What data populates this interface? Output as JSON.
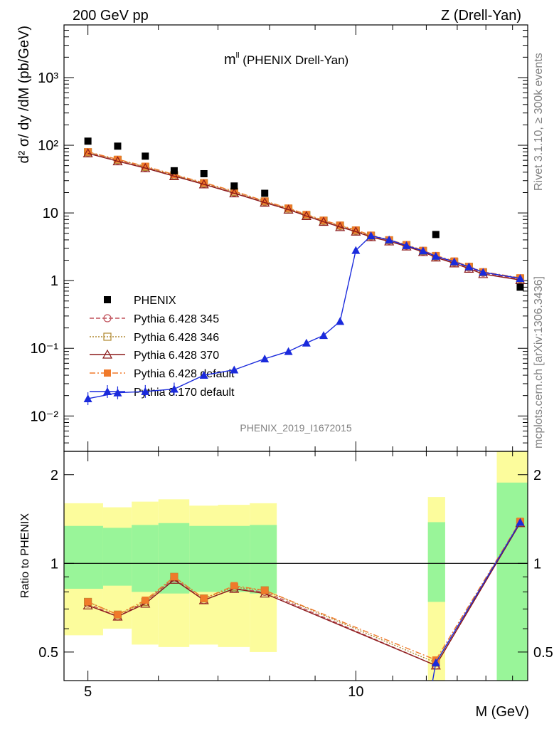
{
  "header": {
    "left": "200 GeV pp",
    "right": "Z (Drell-Yan)",
    "title_main": "m",
    "title_sup": "ll",
    "title_rest": " (PHENIX Drell-Yan)",
    "side_top": "Rivet 3.1.10, ≥ 300k events",
    "side_bottom": "mcplots.cern.ch [arXiv:1306.3436]",
    "analysis_id": "PHENIX_2019_I1672015"
  },
  "colors": {
    "phenix": "#000000",
    "p345": "#c0505a",
    "p346": "#b08830",
    "p370": "#8b1a1a",
    "pdef6": "#f07a2a",
    "p8": "#1a2adc",
    "band_green": "#99f599",
    "band_yellow": "#fcfc9c"
  },
  "chart_data": [
    {
      "type": "scatter",
      "ylabel": "d² σ/ dy /dM (pb/GeV)",
      "y_scale": "log",
      "ylim": [
        0.003,
        6000
      ],
      "xlim": [
        4.7,
        15.6
      ],
      "y_tick_labels": [
        "10⁻²",
        "10⁻¹",
        "1",
        "10",
        "10²",
        "10³"
      ],
      "y_tick_values": [
        0.01,
        0.1,
        1,
        10,
        100,
        1000
      ],
      "legend_position": "bottom-left",
      "series": [
        {
          "name": "PHENIX",
          "key": "phenix",
          "marker": "square",
          "x": [
            5.0,
            5.4,
            5.8,
            6.25,
            6.75,
            7.3,
            7.9,
            12.3,
            15.3
          ],
          "y": [
            115,
            97,
            69,
            42,
            38,
            25,
            19.5,
            4.8,
            0.8
          ]
        },
        {
          "name": "Pythia 6.428 345",
          "key": "p345",
          "marker": "circle",
          "dash": "6,3",
          "x": [
            5.0,
            5.4,
            5.8,
            6.25,
            6.75,
            7.3,
            7.9,
            8.4,
            8.8,
            9.2,
            9.6,
            10.0,
            10.4,
            10.9,
            11.4,
            11.9,
            12.3,
            12.9,
            13.4,
            13.9,
            15.3
          ],
          "y": [
            78,
            60,
            47,
            36,
            27,
            20,
            14.5,
            11.5,
            9.2,
            7.6,
            6.4,
            5.4,
            4.5,
            3.9,
            3.3,
            2.7,
            2.25,
            1.85,
            1.55,
            1.3,
            1.05
          ]
        },
        {
          "name": "Pythia 6.428 346",
          "key": "p346",
          "marker": "square-open",
          "dash": "2,2",
          "x": [
            5.0,
            5.4,
            5.8,
            6.25,
            6.75,
            7.3,
            7.9,
            8.4,
            8.8,
            9.2,
            9.6,
            10.0,
            10.4,
            10.9,
            11.4,
            11.9,
            12.3,
            12.9,
            13.4,
            13.9,
            15.3
          ],
          "y": [
            79,
            61,
            48,
            36,
            27.5,
            20.5,
            14.8,
            11.6,
            9.3,
            7.7,
            6.5,
            5.5,
            4.6,
            3.95,
            3.35,
            2.75,
            2.3,
            1.9,
            1.6,
            1.33,
            1.08
          ]
        },
        {
          "name": "Pythia 6.428 370",
          "key": "p370",
          "marker": "triangle-open",
          "dash": "",
          "x": [
            5.0,
            5.4,
            5.8,
            6.25,
            6.75,
            7.3,
            7.9,
            8.4,
            8.8,
            9.2,
            9.6,
            10.0,
            10.4,
            10.9,
            11.4,
            11.9,
            12.3,
            12.9,
            13.4,
            13.9,
            15.3
          ],
          "y": [
            76,
            58,
            46,
            35,
            26.5,
            19.5,
            14.2,
            11.2,
            9.0,
            7.4,
            6.2,
            5.3,
            4.4,
            3.8,
            3.2,
            2.65,
            2.2,
            1.8,
            1.5,
            1.25,
            1.02
          ]
        },
        {
          "name": "Pythia 6.428 default",
          "key": "pdef6",
          "marker": "square",
          "dash": "8,3,2,3",
          "x": [
            5.0,
            5.4,
            5.8,
            6.25,
            6.75,
            7.3,
            7.9,
            8.4,
            8.8,
            9.2,
            9.6,
            10.0,
            10.4,
            10.9,
            11.4,
            11.9,
            12.3,
            12.9,
            13.4,
            13.9,
            15.3
          ],
          "y": [
            80,
            62,
            49,
            37,
            28,
            21,
            15,
            11.8,
            9.5,
            7.8,
            6.6,
            5.6,
            4.7,
            4.0,
            3.4,
            2.8,
            2.35,
            1.95,
            1.62,
            1.35,
            1.1
          ]
        },
        {
          "name": "Pythia 8.170 default",
          "key": "p8",
          "marker": "triangle",
          "dash": "",
          "x": [
            5.0,
            5.4,
            5.8,
            6.25,
            6.75,
            7.3,
            7.9,
            8.4,
            8.8,
            9.2,
            9.6,
            10.0,
            10.4,
            10.9,
            11.4,
            11.9,
            12.3,
            12.9,
            13.4,
            13.9,
            15.3
          ],
          "y": [
            0.018,
            0.022,
            0.023,
            0.025,
            0.04,
            0.048,
            0.07,
            0.09,
            0.12,
            0.155,
            0.25,
            2.8,
            4.6,
            4.0,
            3.3,
            2.75,
            2.3,
            1.9,
            1.6,
            1.33,
            1.08
          ]
        }
      ]
    },
    {
      "type": "scatter",
      "ylabel": "Ratio to PHENIX",
      "xlabel": "M (GeV)",
      "y_scale": "log",
      "ylim": [
        0.4,
        2.4
      ],
      "xlim": [
        4.7,
        15.6
      ],
      "y_tick_labels": [
        "0.5",
        "1",
        "2"
      ],
      "y_tick_values": [
        0.5,
        1,
        2
      ],
      "x_tick_labels": [
        "5",
        "10"
      ],
      "x_tick_values": [
        5,
        10
      ],
      "bands": [
        {
          "x0": 4.7,
          "x1": 5.2,
          "green": [
            0.82,
            1.34
          ],
          "yellow": [
            0.57,
            1.6
          ]
        },
        {
          "x0": 5.2,
          "x1": 5.6,
          "green": [
            0.84,
            1.32
          ],
          "yellow": [
            0.6,
            1.55
          ]
        },
        {
          "x0": 5.6,
          "x1": 6.0,
          "green": [
            0.8,
            1.35
          ],
          "yellow": [
            0.53,
            1.62
          ]
        },
        {
          "x0": 6.0,
          "x1": 6.5,
          "green": [
            0.79,
            1.37
          ],
          "yellow": [
            0.52,
            1.65
          ]
        },
        {
          "x0": 6.5,
          "x1": 7.0,
          "green": [
            0.8,
            1.34
          ],
          "yellow": [
            0.53,
            1.57
          ]
        },
        {
          "x0": 7.0,
          "x1": 7.6,
          "green": [
            0.8,
            1.34
          ],
          "yellow": [
            0.52,
            1.58
          ]
        },
        {
          "x0": 7.6,
          "x1": 8.15,
          "green": [
            0.79,
            1.35
          ],
          "yellow": [
            0.5,
            1.6
          ]
        },
        {
          "x0": 12.05,
          "x1": 12.6,
          "green": [
            0.74,
            1.38
          ],
          "yellow": [
            0.4,
            1.68
          ]
        },
        {
          "x0": 14.4,
          "x1": 15.6,
          "green": [
            0.4,
            1.88
          ],
          "yellow": [
            0.4,
            2.4
          ]
        }
      ],
      "series": [
        {
          "key": "p345",
          "x": [
            5.0,
            5.4,
            5.8,
            6.25,
            6.75,
            7.3,
            7.9,
            12.3,
            15.3
          ],
          "y": [
            0.73,
            0.66,
            0.74,
            0.89,
            0.75,
            0.82,
            0.8,
            0.45,
            1.38
          ]
        },
        {
          "key": "p346",
          "x": [
            5.0,
            5.4,
            5.8,
            6.25,
            6.75,
            7.3,
            7.9,
            12.3,
            15.3
          ],
          "y": [
            0.74,
            0.67,
            0.74,
            0.9,
            0.76,
            0.83,
            0.81,
            0.46,
            1.38
          ]
        },
        {
          "key": "p370",
          "x": [
            5.0,
            5.4,
            5.8,
            6.25,
            6.75,
            7.3,
            7.9,
            12.3,
            15.3
          ],
          "y": [
            0.72,
            0.66,
            0.73,
            0.88,
            0.75,
            0.82,
            0.79,
            0.45,
            1.37
          ]
        },
        {
          "key": "pdef6",
          "x": [
            5.0,
            5.4,
            5.8,
            6.25,
            6.75,
            7.3,
            7.9,
            12.3,
            15.3
          ],
          "y": [
            0.74,
            0.67,
            0.75,
            0.9,
            0.76,
            0.84,
            0.81,
            0.47,
            1.39
          ]
        },
        {
          "key": "p8",
          "x": [
            12.3,
            15.3
          ],
          "y": [
            0.46,
            1.38
          ]
        }
      ]
    }
  ]
}
